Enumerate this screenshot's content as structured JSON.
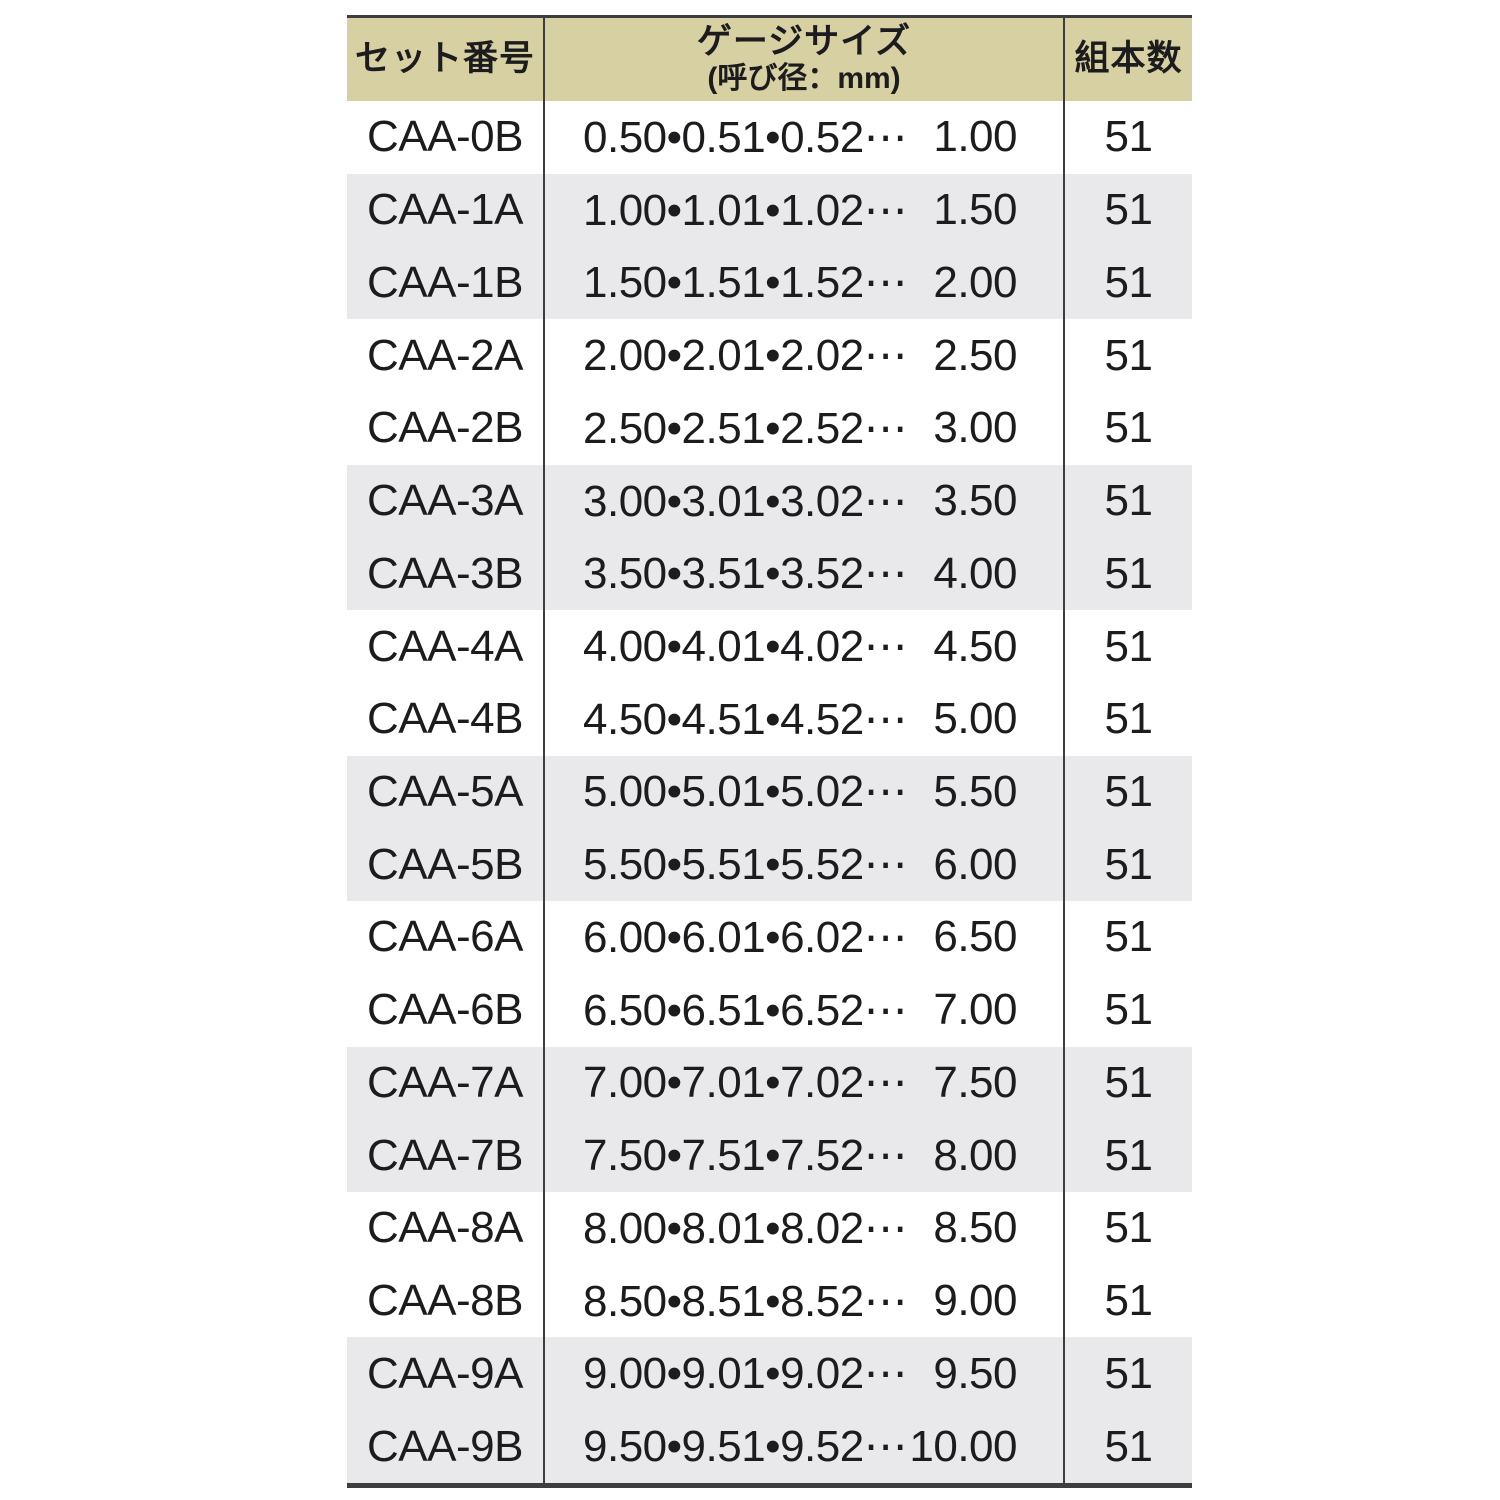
{
  "colors": {
    "header_bg": "#d6d0a3",
    "band_bg": "#e9e9eb",
    "border": "#3d3d3f",
    "text": "#1c1c1e"
  },
  "table": {
    "header": {
      "set_label": "セット番号",
      "size_label_line1": "ゲージサイズ",
      "size_label_line2": "(呼び径：mm)",
      "count_label": "組本数"
    },
    "rows": [
      {
        "set": "CAA-0B",
        "sizes": "0.50•0.51•0.52⋯",
        "end": "1.00",
        "count": "51",
        "shaded": false
      },
      {
        "set": "CAA-1A",
        "sizes": "1.00•1.01•1.02⋯",
        "end": "1.50",
        "count": "51",
        "shaded": true
      },
      {
        "set": "CAA-1B",
        "sizes": "1.50•1.51•1.52⋯",
        "end": "2.00",
        "count": "51",
        "shaded": true
      },
      {
        "set": "CAA-2A",
        "sizes": "2.00•2.01•2.02⋯",
        "end": "2.50",
        "count": "51",
        "shaded": false
      },
      {
        "set": "CAA-2B",
        "sizes": "2.50•2.51•2.52⋯",
        "end": "3.00",
        "count": "51",
        "shaded": false
      },
      {
        "set": "CAA-3A",
        "sizes": "3.00•3.01•3.02⋯",
        "end": "3.50",
        "count": "51",
        "shaded": true
      },
      {
        "set": "CAA-3B",
        "sizes": "3.50•3.51•3.52⋯",
        "end": "4.00",
        "count": "51",
        "shaded": true
      },
      {
        "set": "CAA-4A",
        "sizes": "4.00•4.01•4.02⋯",
        "end": "4.50",
        "count": "51",
        "shaded": false
      },
      {
        "set": "CAA-4B",
        "sizes": "4.50•4.51•4.52⋯",
        "end": "5.00",
        "count": "51",
        "shaded": false
      },
      {
        "set": "CAA-5A",
        "sizes": "5.00•5.01•5.02⋯",
        "end": "5.50",
        "count": "51",
        "shaded": true
      },
      {
        "set": "CAA-5B",
        "sizes": "5.50•5.51•5.52⋯",
        "end": "6.00",
        "count": "51",
        "shaded": true
      },
      {
        "set": "CAA-6A",
        "sizes": "6.00•6.01•6.02⋯",
        "end": "6.50",
        "count": "51",
        "shaded": false
      },
      {
        "set": "CAA-6B",
        "sizes": "6.50•6.51•6.52⋯",
        "end": "7.00",
        "count": "51",
        "shaded": false
      },
      {
        "set": "CAA-7A",
        "sizes": "7.00•7.01•7.02⋯",
        "end": "7.50",
        "count": "51",
        "shaded": true
      },
      {
        "set": "CAA-7B",
        "sizes": "7.50•7.51•7.52⋯",
        "end": "8.00",
        "count": "51",
        "shaded": true
      },
      {
        "set": "CAA-8A",
        "sizes": "8.00•8.01•8.02⋯",
        "end": "8.50",
        "count": "51",
        "shaded": false
      },
      {
        "set": "CAA-8B",
        "sizes": "8.50•8.51•8.52⋯",
        "end": "9.00",
        "count": "51",
        "shaded": false
      },
      {
        "set": "CAA-9A",
        "sizes": "9.00•9.01•9.02⋯",
        "end": "9.50",
        "count": "51",
        "shaded": true
      },
      {
        "set": "CAA-9B",
        "sizes": "9.50•9.51•9.52⋯",
        "end": "10.00",
        "count": "51",
        "shaded": true
      }
    ]
  }
}
